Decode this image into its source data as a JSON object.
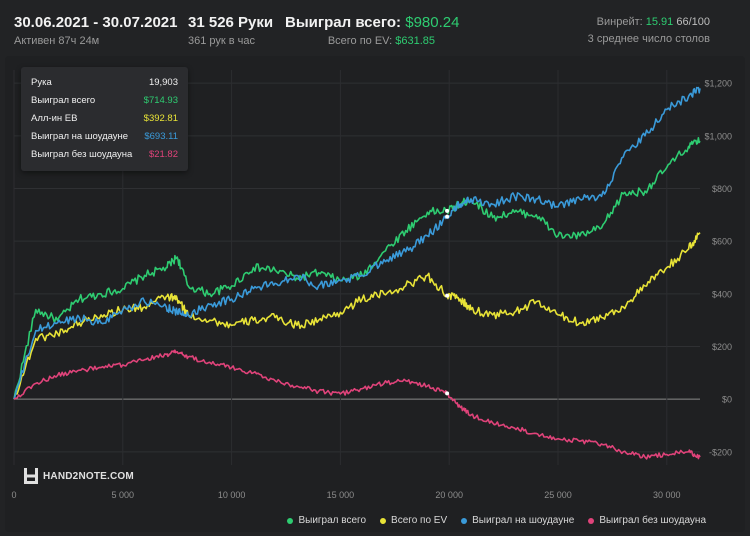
{
  "header": {
    "date_range": "30.06.2021 - 30.07.2021",
    "active": "Активен 87ч 24м",
    "hands": "31 526 Руки",
    "hands_per_hour": "361 рук в час",
    "won_label": "Выиграл всего:",
    "won_value": "$980.24",
    "ev_label": "Всего по EV:",
    "ev_value": "$631.85",
    "winrate_label": "Винрейт:",
    "winrate_value": "15.91",
    "winrate_frac": "66/100",
    "tables": "3 среднее число столов"
  },
  "tooltip": {
    "rows": [
      {
        "label": "Рука",
        "value": "19,903",
        "color": "#f0f0f0"
      },
      {
        "label": "Выиграл всего",
        "value": "$714.93",
        "color": "#2ecc71"
      },
      {
        "label": "Алл-ин EB",
        "value": "$392.81",
        "color": "#e8e337"
      },
      {
        "label": "Выиграл на шоудауне",
        "value": "$693.11",
        "color": "#3a9ad9"
      },
      {
        "label": "Выиграл без шоудауна",
        "value": "$21.82",
        "color": "#e0437a"
      }
    ]
  },
  "brand": {
    "name": "HAND2NOTE.COM"
  },
  "legend": {
    "items": [
      {
        "label": "Выиграл всего",
        "color": "#2ecc71"
      },
      {
        "label": "Всего по EV",
        "color": "#e8e337"
      },
      {
        "label": "Выиграл на шоудауне",
        "color": "#3a9ad9"
      },
      {
        "label": "Выиграл без шоудауна",
        "color": "#e0437a"
      }
    ]
  },
  "chart_data": {
    "type": "line",
    "xlim": [
      0,
      31526
    ],
    "ylim": [
      -250,
      1250
    ],
    "x_ticks": [
      0,
      5000,
      10000,
      15000,
      20000,
      25000,
      30000
    ],
    "x_tick_labels": [
      "0",
      "5 000",
      "10 000",
      "15 000",
      "20 000",
      "25 000",
      "30 000"
    ],
    "y_ticks": [
      -200,
      0,
      200,
      400,
      600,
      800,
      1000,
      1200
    ],
    "y_tick_labels": [
      "-$200",
      "$0",
      "$200",
      "$400",
      "$600",
      "$800",
      "$1,000",
      "$1,200"
    ],
    "grid": true,
    "legend_position": "bottom-right",
    "series": [
      {
        "name": "Выиграл всего",
        "color": "#2ecc71",
        "x": [
          0,
          1000,
          2000,
          3000,
          4000,
          5000,
          6000,
          7000,
          7500,
          8000,
          9000,
          10000,
          11000,
          12000,
          13000,
          14000,
          15000,
          16000,
          17000,
          18000,
          19000,
          19903,
          20500,
          21000,
          22000,
          23000,
          24000,
          25000,
          26000,
          27000,
          28000,
          29000,
          30000,
          31000,
          31526
        ],
        "y": [
          0,
          340,
          300,
          380,
          400,
          420,
          470,
          500,
          540,
          430,
          400,
          430,
          500,
          490,
          460,
          480,
          450,
          470,
          560,
          640,
          710,
          715,
          740,
          760,
          690,
          710,
          700,
          620,
          620,
          650,
          780,
          790,
          880,
          960,
          980
        ]
      },
      {
        "name": "Всего по EV",
        "color": "#e8e337",
        "x": [
          0,
          1000,
          2000,
          3000,
          4000,
          5000,
          6000,
          7000,
          7500,
          8000,
          9000,
          10000,
          11000,
          12000,
          13000,
          14000,
          15000,
          16000,
          17000,
          18000,
          19000,
          19903,
          20500,
          21000,
          22000,
          23000,
          24000,
          25000,
          26000,
          27000,
          28000,
          29000,
          30000,
          31000,
          31526
        ],
        "y": [
          0,
          230,
          250,
          290,
          320,
          340,
          350,
          390,
          380,
          320,
          300,
          280,
          300,
          310,
          280,
          300,
          330,
          380,
          400,
          430,
          470,
          393,
          380,
          340,
          320,
          330,
          370,
          320,
          290,
          310,
          350,
          430,
          500,
          570,
          632
        ]
      },
      {
        "name": "Выиграл на шоудауне",
        "color": "#3a9ad9",
        "x": [
          0,
          1000,
          2000,
          3000,
          4000,
          5000,
          6000,
          7000,
          7500,
          8000,
          9000,
          10000,
          11000,
          12000,
          13000,
          14000,
          15000,
          16000,
          17000,
          18000,
          19000,
          19903,
          20500,
          21000,
          22000,
          23000,
          24000,
          25000,
          26000,
          27000,
          28000,
          29000,
          30000,
          31000,
          31526
        ],
        "y": [
          0,
          260,
          290,
          310,
          290,
          340,
          370,
          350,
          330,
          320,
          360,
          380,
          420,
          440,
          470,
          430,
          450,
          470,
          530,
          560,
          620,
          693,
          740,
          760,
          740,
          770,
          760,
          730,
          760,
          770,
          920,
          1000,
          1100,
          1150,
          1180
        ]
      },
      {
        "name": "Выиграл без шоудауна",
        "color": "#e0437a",
        "x": [
          0,
          1000,
          2000,
          3000,
          4000,
          5000,
          6000,
          7000,
          7500,
          8000,
          9000,
          10000,
          11000,
          12000,
          13000,
          14000,
          15000,
          16000,
          17000,
          18000,
          19000,
          19903,
          20500,
          21000,
          22000,
          23000,
          24000,
          25000,
          26000,
          27000,
          28000,
          29000,
          30000,
          31000,
          31526
        ],
        "y": [
          0,
          60,
          90,
          110,
          120,
          130,
          150,
          170,
          180,
          160,
          140,
          120,
          100,
          70,
          50,
          30,
          20,
          40,
          60,
          70,
          50,
          22,
          -30,
          -60,
          -90,
          -110,
          -130,
          -150,
          -160,
          -170,
          -200,
          -220,
          -210,
          -200,
          -220
        ]
      }
    ]
  }
}
